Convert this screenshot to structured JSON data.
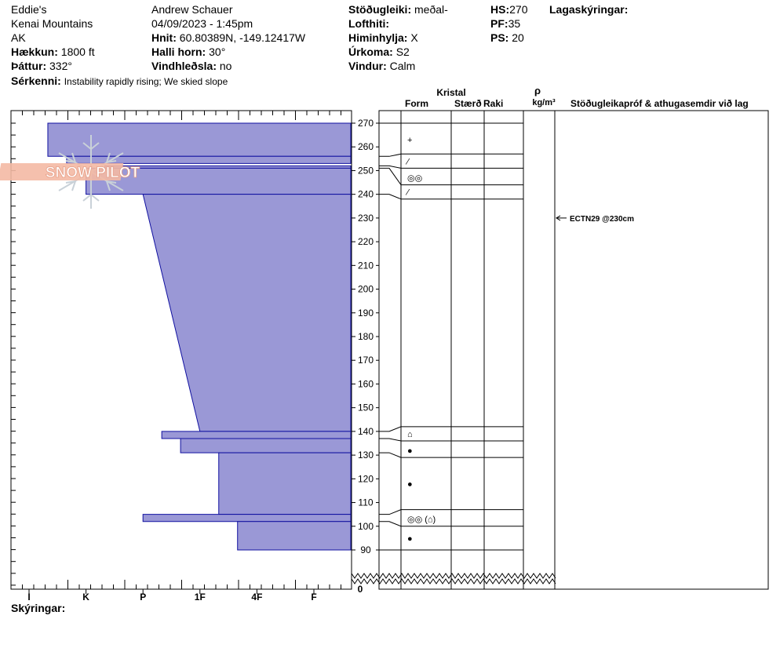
{
  "header": {
    "col1": {
      "location_name": "Eddie's",
      "range": "Kenai Mountains",
      "state": "AK",
      "elevation_label": "Hækkun:",
      "elevation_value": "1800 ft",
      "aspect_label": "Þáttur:",
      "aspect_value": "332°"
    },
    "col2": {
      "observer": "Andrew Schauer",
      "datetime": "04/09/2023 - 1:45pm",
      "coords_label": "Hnit:",
      "coords_value": "60.80389N, -149.12417W",
      "slope_label": "Halli horn:",
      "slope_value": "30°",
      "wind_loading_label": "Vindhleðsla:",
      "wind_loading_value": "no"
    },
    "col3": {
      "stability_label": "Stöðugleiki:",
      "stability_value": "meðal-",
      "air_temp_label": "Lofthiti:",
      "air_temp_value": "",
      "sky_label": "Himinhylja:",
      "sky_value": "X",
      "precip_label": "Úrkoma:",
      "precip_value": "S2",
      "wind_label": "Vindur:",
      "wind_value": "Calm"
    },
    "col4": {
      "hs_label": "HS:",
      "hs_value": "270",
      "pf_label": "PF:",
      "pf_value": "35",
      "ps_label": "PS:",
      "ps_value": "20"
    },
    "layer_notes_label": "Lagaskýringar:",
    "remarks_label": "Sérkenni:",
    "remarks_value": "Instability rapidly rising;  We skied slope"
  },
  "logo": {
    "text": "SNOW PILOT",
    "color": "#f4b9a4"
  },
  "columns": {
    "crystal": "Kristal",
    "form": "Form",
    "size": "Stærð",
    "moisture": "Raki",
    "density_symbol": "ρ",
    "density_unit": "kg/m³",
    "stability_tests": "Stöðugleikapróf & athugasemdir við lag"
  },
  "test_result": {
    "label": "ECTN29 @230cm",
    "depth": 230
  },
  "footer": {
    "notes_label": "Skýringar:"
  },
  "colors": {
    "hardness_fill": "#9a98d6",
    "hardness_edge": "#1010a0",
    "logo_flake": "#c9d1d8"
  },
  "chart_data": {
    "type": "bar",
    "orientation": "horizontal",
    "description_axis_y": "height above ground (cm)",
    "y_ticks": [
      270,
      260,
      250,
      240,
      230,
      220,
      210,
      200,
      190,
      180,
      170,
      160,
      150,
      140,
      130,
      120,
      110,
      100,
      90
    ],
    "y_break_label": "0",
    "ylim": [
      90,
      270
    ],
    "hardness_scale": [
      "I",
      "K",
      "P",
      "1F",
      "4F",
      "F"
    ],
    "hardness_layers": [
      {
        "top": 270,
        "bottom": 256,
        "hardness_top": 0.33,
        "hardness_bottom": 0.33
      },
      {
        "top": 256,
        "bottom": 253,
        "hardness_top": 0.66,
        "hardness_bottom": 0.66
      },
      {
        "top": 252,
        "bottom": 251,
        "hardness_top": 1.33,
        "hardness_bottom": 1.33
      },
      {
        "top": 251,
        "bottom": 240,
        "hardness_top": 1.0,
        "hardness_bottom": 1.0
      },
      {
        "top": 240,
        "bottom": 140,
        "hardness_top": 2.0,
        "hardness_bottom": 3.0
      },
      {
        "top": 140,
        "bottom": 137,
        "hardness_top": 2.33,
        "hardness_bottom": 2.33
      },
      {
        "top": 137,
        "bottom": 131,
        "hardness_top": 2.66,
        "hardness_bottom": 2.66
      },
      {
        "top": 131,
        "bottom": 105,
        "hardness_top": 3.33,
        "hardness_bottom": 3.33
      },
      {
        "top": 105,
        "bottom": 102,
        "hardness_top": 2.0,
        "hardness_bottom": 2.0
      },
      {
        "top": 102,
        "bottom": 90,
        "hardness_top": 3.66,
        "hardness_bottom": 3.66
      }
    ],
    "profile_boundaries": [
      270,
      257,
      251,
      244,
      238,
      142,
      136,
      129,
      107,
      100,
      90
    ],
    "grain_symbols": [
      {
        "symbol": "+",
        "depth": 263
      },
      {
        "symbol": "⁄",
        "depth": 254
      },
      {
        "symbol": "◎◎",
        "depth": 247
      },
      {
        "symbol": "⁄",
        "depth": 241
      },
      {
        "symbol": "⌂",
        "depth": 139
      },
      {
        "symbol": "●",
        "depth": 132
      },
      {
        "symbol": "●",
        "depth": 118
      },
      {
        "symbol": "◎◎ (⌂)",
        "depth": 103
      },
      {
        "symbol": "●",
        "depth": 95
      }
    ]
  }
}
